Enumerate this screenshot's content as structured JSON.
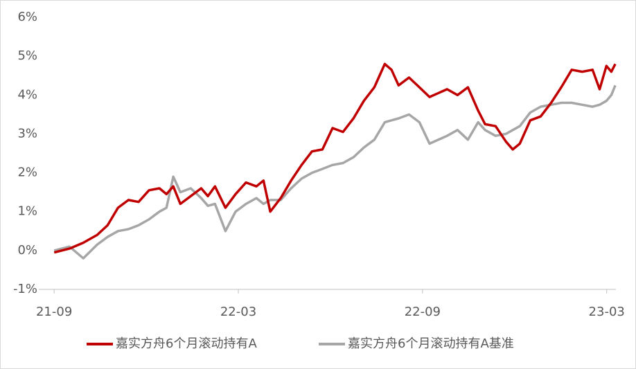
{
  "chart_data": {
    "type": "line",
    "x": [
      0,
      0.5,
      0.95,
      1.4,
      1.74,
      2.08,
      2.42,
      2.75,
      3.09,
      3.43,
      3.66,
      3.88,
      4.11,
      4.45,
      4.79,
      5.01,
      5.24,
      5.58,
      5.91,
      6.25,
      6.59,
      6.82,
      7.04,
      7.38,
      7.72,
      8.06,
      8.4,
      8.74,
      9.07,
      9.41,
      9.75,
      10.09,
      10.43,
      10.77,
      10.99,
      11.22,
      11.56,
      11.9,
      12.23,
      12.8,
      13.14,
      13.48,
      13.81,
      14.04,
      14.38,
      14.72,
      14.94,
      15.17,
      15.51,
      15.85,
      16.19,
      16.52,
      16.86,
      17.2,
      17.54,
      17.77,
      17.99,
      18.15,
      18.28
    ],
    "series": [
      {
        "name": "嘉实方舟6个月滚动持有A",
        "color": "#c00000",
        "values": [
          -0.05,
          0.05,
          0.2,
          0.4,
          0.65,
          1.1,
          1.3,
          1.25,
          1.55,
          1.6,
          1.45,
          1.65,
          1.2,
          1.4,
          1.6,
          1.4,
          1.65,
          1.1,
          1.45,
          1.75,
          1.65,
          1.8,
          1.0,
          1.35,
          1.8,
          2.2,
          2.55,
          2.6,
          3.15,
          3.05,
          3.4,
          3.85,
          4.2,
          4.8,
          4.65,
          4.25,
          4.45,
          4.2,
          3.95,
          4.15,
          4.0,
          4.2,
          3.6,
          3.25,
          3.2,
          2.8,
          2.6,
          2.75,
          3.35,
          3.45,
          3.8,
          4.2,
          4.65,
          4.6,
          4.65,
          4.15,
          4.75,
          4.6,
          4.8
        ]
      },
      {
        "name": "嘉实方舟6个月滚动持有A基准",
        "color": "#a6a6a6",
        "values": [
          0.0,
          0.1,
          -0.2,
          0.15,
          0.35,
          0.5,
          0.55,
          0.65,
          0.8,
          1.0,
          1.1,
          1.9,
          1.5,
          1.6,
          1.35,
          1.15,
          1.2,
          0.5,
          1.0,
          1.2,
          1.35,
          1.2,
          1.3,
          1.3,
          1.6,
          1.85,
          2.0,
          2.1,
          2.2,
          2.25,
          2.4,
          2.65,
          2.85,
          3.3,
          3.35,
          3.4,
          3.5,
          3.3,
          2.75,
          2.95,
          3.1,
          2.85,
          3.3,
          3.1,
          2.95,
          3.0,
          3.1,
          3.2,
          3.55,
          3.7,
          3.75,
          3.8,
          3.8,
          3.75,
          3.7,
          3.75,
          3.85,
          4.0,
          4.25
        ]
      }
    ],
    "xlim": [
      -0.5,
      18.3
    ],
    "xticks": [
      {
        "value": 0,
        "label": "21-09"
      },
      {
        "value": 6,
        "label": "22-03"
      },
      {
        "value": 12,
        "label": "22-09"
      },
      {
        "value": 18,
        "label": "23-03"
      }
    ],
    "ylim": [
      -1,
      6
    ],
    "yticks": [
      {
        "value": -1,
        "label": "-1%"
      },
      {
        "value": 0,
        "label": "0%"
      },
      {
        "value": 1,
        "label": "1%"
      },
      {
        "value": 2,
        "label": "2%"
      },
      {
        "value": 3,
        "label": "3%"
      },
      {
        "value": 4,
        "label": "4%"
      },
      {
        "value": 5,
        "label": "5%"
      },
      {
        "value": 6,
        "label": "6%"
      }
    ],
    "grid": false,
    "legend": "bottom"
  }
}
